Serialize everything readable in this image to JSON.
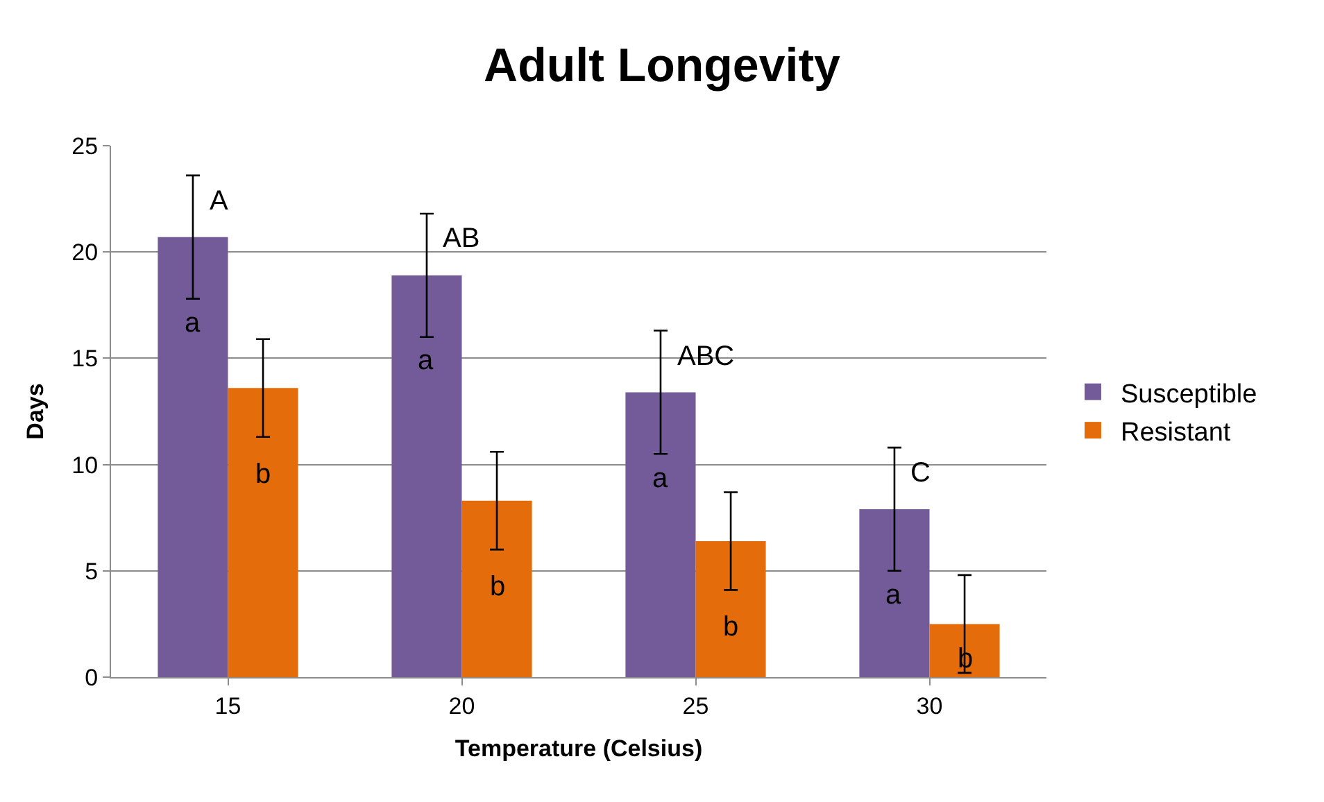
{
  "chart_data": {
    "type": "bar",
    "title": "Adult Longevity",
    "xlabel": "Temperature (Celsius)",
    "ylabel": "Days",
    "categories": [
      "15",
      "20",
      "25",
      "30"
    ],
    "series": [
      {
        "name": "Susceptible",
        "color": "#725b98",
        "values": [
          20.7,
          18.9,
          13.4,
          7.9
        ],
        "errors": [
          2.9,
          2.9,
          2.9,
          2.9
        ]
      },
      {
        "name": "Resistant",
        "color": "#e46c0a",
        "values": [
          13.6,
          8.3,
          6.4,
          2.5
        ],
        "errors": [
          2.3,
          2.3,
          2.3,
          2.3
        ]
      }
    ],
    "ylim": [
      0,
      25
    ],
    "yticks": [
      0,
      5,
      10,
      15,
      20,
      25
    ],
    "grid": "y",
    "legend": "right",
    "annotations": [
      {
        "text": "A",
        "x": "15",
        "y": 20.7
      },
      {
        "text": "AB",
        "x": "20",
        "y": 18.9
      },
      {
        "text": "ABC",
        "x": "25",
        "y": 13.4
      },
      {
        "text": "C",
        "x": "30",
        "y": 7.9
      },
      {
        "text": "a",
        "x": "15",
        "y": 20.7
      },
      {
        "text": "a",
        "x": "20",
        "y": 18.9
      },
      {
        "text": "a",
        "x": "25",
        "y": 13.4
      },
      {
        "text": "a",
        "x": "30",
        "y": 7.9
      },
      {
        "text": "b",
        "x": "15",
        "y": 13.6
      },
      {
        "text": "b",
        "x": "20",
        "y": 8.3
      },
      {
        "text": "b",
        "x": "25",
        "y": 6.4
      },
      {
        "text": "b",
        "x": "30",
        "y": 2.5
      }
    ]
  }
}
